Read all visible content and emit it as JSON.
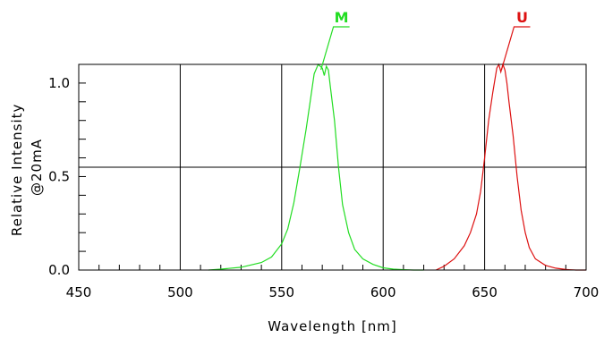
{
  "chart_data": {
    "type": "line",
    "xlabel": "Wavelength [nm]",
    "ylabel_lines": [
      "Relative Intensity",
      "@20mA"
    ],
    "xlim": [
      450,
      700
    ],
    "ylim": [
      0,
      1.1
    ],
    "x_ticks": [
      450,
      500,
      550,
      600,
      650,
      700
    ],
    "x_tick_labels": [
      "450",
      "500",
      "550",
      "600",
      "650",
      "700"
    ],
    "y_ticks": [
      0,
      0.5,
      1.0
    ],
    "y_tick_labels": [
      "0.0",
      "0.5",
      "1.0"
    ],
    "grid": true,
    "series": [
      {
        "name": "M",
        "color": "#22dd22",
        "x": [
          514,
          520,
          530,
          540,
          545,
          550,
          553,
          556,
          559,
          562,
          564,
          566,
          568,
          570,
          571,
          572,
          573,
          574,
          576,
          578,
          580,
          583,
          586,
          590,
          595,
          600,
          605,
          610,
          615,
          620
        ],
        "y": [
          0.0,
          0.005,
          0.015,
          0.04,
          0.07,
          0.14,
          0.22,
          0.36,
          0.55,
          0.75,
          0.9,
          1.05,
          1.1,
          1.08,
          1.04,
          1.09,
          1.07,
          0.98,
          0.8,
          0.55,
          0.35,
          0.2,
          0.11,
          0.06,
          0.03,
          0.012,
          0.005,
          0.002,
          0.0,
          0.0
        ]
      },
      {
        "name": "U",
        "color": "#dd1111",
        "x": [
          626,
          630,
          635,
          640,
          643,
          646,
          648,
          650,
          652,
          654,
          656,
          657,
          658,
          659,
          660,
          661,
          662,
          664,
          666,
          668,
          670,
          672,
          675,
          680,
          685,
          690,
          695,
          700
        ],
        "y": [
          0.0,
          0.02,
          0.06,
          0.13,
          0.2,
          0.3,
          0.42,
          0.6,
          0.8,
          0.95,
          1.08,
          1.1,
          1.06,
          1.1,
          1.07,
          1.0,
          0.9,
          0.72,
          0.5,
          0.32,
          0.2,
          0.12,
          0.06,
          0.025,
          0.01,
          0.003,
          0.0,
          0.0
        ]
      }
    ]
  }
}
